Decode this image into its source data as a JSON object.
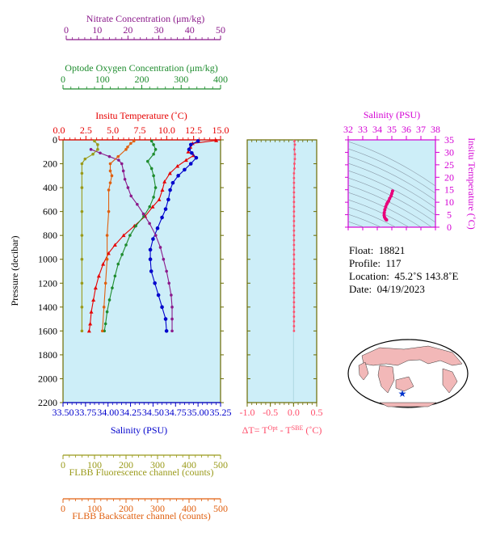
{
  "colors": {
    "nitrate": "#8b1a8b",
    "oxygen": "#1e8c2e",
    "temperature": "#e60000",
    "salinity": "#0000cc",
    "fluorescence": "#9a9a1a",
    "backscatter": "#e06010",
    "delta_t": "#ff4d6a",
    "ts_axis": "#d400d4",
    "plot_bg": "#cdeef8",
    "frame_olive": "#6b6b00"
  },
  "axes": {
    "pressure_label": "Pressure (decibar)",
    "pressure_ticks": [
      "0",
      "200",
      "400",
      "600",
      "800",
      "1000",
      "1200",
      "1400",
      "1600",
      "1800",
      "2000",
      "2200"
    ],
    "nitrate_title": "Nitrate Concentration (μm/kg)",
    "nitrate_ticks": [
      "0",
      "10",
      "20",
      "30",
      "40",
      "50"
    ],
    "oxygen_title": "Optode Oxygen Concentration (μm/kg)",
    "oxygen_ticks": [
      "0",
      "100",
      "200",
      "300",
      "400"
    ],
    "temp_title": "Insitu Temperature (˚C)",
    "temp_ticks": [
      "0.0",
      "2.5",
      "5.0",
      "7.5",
      "10.0",
      "12.5",
      "15.0"
    ],
    "salinity_title": "Salinity (PSU)",
    "salinity_ticks": [
      "33.50",
      "33.75",
      "34.00",
      "34.25",
      "34.50",
      "34.75",
      "35.00",
      "35.25"
    ],
    "fluor_title": "FLBB Fluorescence channel (counts)",
    "fluor_ticks": [
      "0",
      "100",
      "200",
      "300",
      "400",
      "500"
    ],
    "bs_title": "FLBB Backscatter channel (counts)",
    "bs_ticks": [
      "0",
      "100",
      "200",
      "300",
      "400",
      "500"
    ],
    "dt_ticks": [
      "-1.0",
      "-0.5",
      "0.0",
      "0.5"
    ],
    "dt_title_a": "ΔT= T",
    "dt_sup1": "Opt",
    "dt_title_b": " - T",
    "dt_sup2": "SBE",
    "dt_title_c": " (˚C)",
    "ts_sal_title": "Salinity (PSU)",
    "ts_sal_ticks": [
      "32",
      "33",
      "34",
      "35",
      "36",
      "37",
      "38"
    ],
    "ts_temp_title": "Insitu Temperature (˚C)",
    "ts_temp_ticks": [
      "0",
      "5",
      "10",
      "15",
      "20",
      "25",
      "30",
      "35"
    ]
  },
  "info": {
    "float_label": "Float:",
    "float_value": "18821",
    "profile_label": "Profile:",
    "profile_value": "117",
    "location_label": "Location:",
    "location_value": "45.2˚S  143.8˚E",
    "date_label": "Date:",
    "date_value": "04/19/2023"
  },
  "chart_data": [
    {
      "type": "line",
      "y_axis": "pressure (decibar)",
      "ylim": [
        2200,
        0
      ],
      "series": [
        {
          "name": "Insitu Temperature (˚C)",
          "xlim": [
            0,
            15
          ],
          "points": [
            [
              14.6,
              5
            ],
            [
              12.4,
              30
            ],
            [
              12.2,
              60
            ],
            [
              12.0,
              100
            ],
            [
              12.5,
              130
            ],
            [
              11.8,
              170
            ],
            [
              11.0,
              220
            ],
            [
              10.3,
              280
            ],
            [
              9.8,
              350
            ],
            [
              9.6,
              420
            ],
            [
              9.3,
              500
            ],
            [
              8.7,
              560
            ],
            [
              8.0,
              640
            ],
            [
              7.0,
              720
            ],
            [
              6.0,
              800
            ],
            [
              5.2,
              880
            ],
            [
              4.6,
              950
            ],
            [
              4.1,
              1040
            ],
            [
              3.7,
              1140
            ],
            [
              3.4,
              1240
            ],
            [
              3.2,
              1340
            ],
            [
              3.0,
              1440
            ],
            [
              2.9,
              1540
            ],
            [
              2.8,
              1600
            ]
          ]
        },
        {
          "name": "Salinity (PSU)",
          "xlim": [
            33.5,
            35.25
          ],
          "points": [
            [
              35.0,
              10
            ],
            [
              34.92,
              40
            ],
            [
              34.9,
              80
            ],
            [
              34.93,
              110
            ],
            [
              34.98,
              150
            ],
            [
              34.92,
              200
            ],
            [
              34.85,
              250
            ],
            [
              34.78,
              300
            ],
            [
              34.72,
              360
            ],
            [
              34.69,
              420
            ],
            [
              34.67,
              500
            ],
            [
              34.64,
              580
            ],
            [
              34.6,
              650
            ],
            [
              34.55,
              740
            ],
            [
              34.5,
              830
            ],
            [
              34.47,
              920
            ],
            [
              34.47,
              1000
            ],
            [
              34.48,
              1100
            ],
            [
              34.52,
              1200
            ],
            [
              34.56,
              1300
            ],
            [
              34.6,
              1400
            ],
            [
              34.64,
              1500
            ],
            [
              34.65,
              1600
            ]
          ]
        },
        {
          "name": "Optode Oxygen Concentration (μm/kg)",
          "xlim": [
            0,
            400
          ],
          "points": [
            [
              225,
              10
            ],
            [
              230,
              40
            ],
            [
              235,
              80
            ],
            [
              230,
              120
            ],
            [
              215,
              180
            ],
            [
              225,
              240
            ],
            [
              230,
              300
            ],
            [
              235,
              400
            ],
            [
              230,
              480
            ],
            [
              220,
              560
            ],
            [
              205,
              640
            ],
            [
              185,
              720
            ],
            [
              170,
              800
            ],
            [
              160,
              880
            ],
            [
              150,
              960
            ],
            [
              140,
              1040
            ],
            [
              132,
              1140
            ],
            [
              125,
              1240
            ],
            [
              118,
              1340
            ],
            [
              112,
              1440
            ],
            [
              108,
              1540
            ],
            [
              105,
              1600
            ]
          ]
        },
        {
          "name": "Nitrate Concentration (μm/kg)",
          "xlim": [
            0,
            50
          ],
          "points": [
            [
              8,
              80
            ],
            [
              11,
              110
            ],
            [
              14,
              140
            ],
            [
              17,
              170
            ],
            [
              18,
              200
            ],
            [
              18.5,
              260
            ],
            [
              19,
              330
            ],
            [
              20,
              400
            ],
            [
              21,
              470
            ],
            [
              23,
              540
            ],
            [
              25,
              620
            ],
            [
              27,
              700
            ],
            [
              29,
              800
            ],
            [
              30.5,
              900
            ],
            [
              31.5,
              1000
            ],
            [
              32.5,
              1100
            ],
            [
              33.3,
              1200
            ],
            [
              34,
              1300
            ],
            [
              34.3,
              1400
            ],
            [
              34.3,
              1500
            ],
            [
              34.3,
              1600
            ]
          ]
        },
        {
          "name": "FLBB Fluorescence channel (counts)",
          "xlim": [
            0,
            500
          ],
          "points": [
            [
              100,
              10
            ],
            [
              110,
              40
            ],
            [
              110,
              80
            ],
            [
              95,
              120
            ],
            [
              70,
              160
            ],
            [
              60,
              200
            ],
            [
              60,
              280
            ],
            [
              60,
              400
            ],
            [
              60,
              600
            ],
            [
              60,
              800
            ],
            [
              60,
              1000
            ],
            [
              60,
              1200
            ],
            [
              60,
              1400
            ],
            [
              60,
              1600
            ]
          ]
        },
        {
          "name": "FLBB Backscatter channel (counts)",
          "xlim": [
            0,
            500
          ],
          "points": [
            [
              225,
              10
            ],
            [
              215,
              30
            ],
            [
              205,
              60
            ],
            [
              200,
              80
            ],
            [
              175,
              140
            ],
            [
              150,
              200
            ],
            [
              150,
              260
            ],
            [
              155,
              300
            ],
            [
              150,
              360
            ],
            [
              145,
              420
            ],
            [
              145,
              600
            ],
            [
              140,
              800
            ],
            [
              140,
              1000
            ],
            [
              135,
              1200
            ],
            [
              130,
              1400
            ],
            [
              125,
              1600
            ]
          ]
        }
      ]
    },
    {
      "type": "scatter",
      "xlabel": "ΔT= T^Opt - T^SBE (˚C)",
      "xlim": [
        -1.0,
        0.5
      ],
      "ylim": [
        2200,
        0
      ],
      "series": [
        {
          "name": "ΔT",
          "points": [
            [
              0.02,
              10
            ],
            [
              0.03,
              40
            ],
            [
              0.02,
              80
            ],
            [
              0.03,
              120
            ],
            [
              0.03,
              160
            ],
            [
              0.02,
              200
            ],
            [
              0.02,
              240
            ],
            [
              0.01,
              280
            ],
            [
              0.01,
              320
            ],
            [
              0.01,
              360
            ],
            [
              0.01,
              400
            ],
            [
              0.01,
              440
            ],
            [
              0.01,
              480
            ],
            [
              0.01,
              520
            ],
            [
              0.01,
              560
            ],
            [
              0.01,
              600
            ],
            [
              0.01,
              640
            ],
            [
              0.01,
              680
            ],
            [
              0.01,
              720
            ],
            [
              0.01,
              760
            ],
            [
              0.01,
              800
            ],
            [
              0.01,
              840
            ],
            [
              0.01,
              880
            ],
            [
              0.01,
              920
            ],
            [
              0.01,
              960
            ],
            [
              0.01,
              1000
            ],
            [
              0.01,
              1040
            ],
            [
              0.01,
              1080
            ],
            [
              0.01,
              1120
            ],
            [
              0.01,
              1160
            ],
            [
              0.01,
              1200
            ],
            [
              0.01,
              1240
            ],
            [
              0.01,
              1280
            ],
            [
              0.01,
              1320
            ],
            [
              0.01,
              1360
            ],
            [
              0.01,
              1400
            ],
            [
              0.01,
              1440
            ],
            [
              0.01,
              1480
            ],
            [
              0.01,
              1520
            ],
            [
              0.01,
              1560
            ],
            [
              0.01,
              1600
            ]
          ]
        }
      ]
    },
    {
      "type": "scatter",
      "xlabel": "Salinity (PSU)",
      "ylabel": "Insitu Temperature (˚C)",
      "xlim": [
        32,
        38
      ],
      "ylim": [
        0,
        35
      ],
      "series": [
        {
          "name": "T-S",
          "points": [
            [
              35.05,
              14.5
            ],
            [
              35.0,
              13.5
            ],
            [
              34.95,
              12.5
            ],
            [
              34.85,
              11.5
            ],
            [
              34.78,
              10.5
            ],
            [
              34.7,
              9.8
            ],
            [
              34.65,
              9.2
            ],
            [
              34.58,
              8.2
            ],
            [
              34.52,
              7.0
            ],
            [
              34.48,
              5.8
            ],
            [
              34.47,
              4.8
            ],
            [
              34.5,
              4.0
            ],
            [
              34.55,
              3.5
            ],
            [
              34.6,
              3.1
            ],
            [
              34.64,
              2.9
            ]
          ]
        }
      ]
    }
  ]
}
